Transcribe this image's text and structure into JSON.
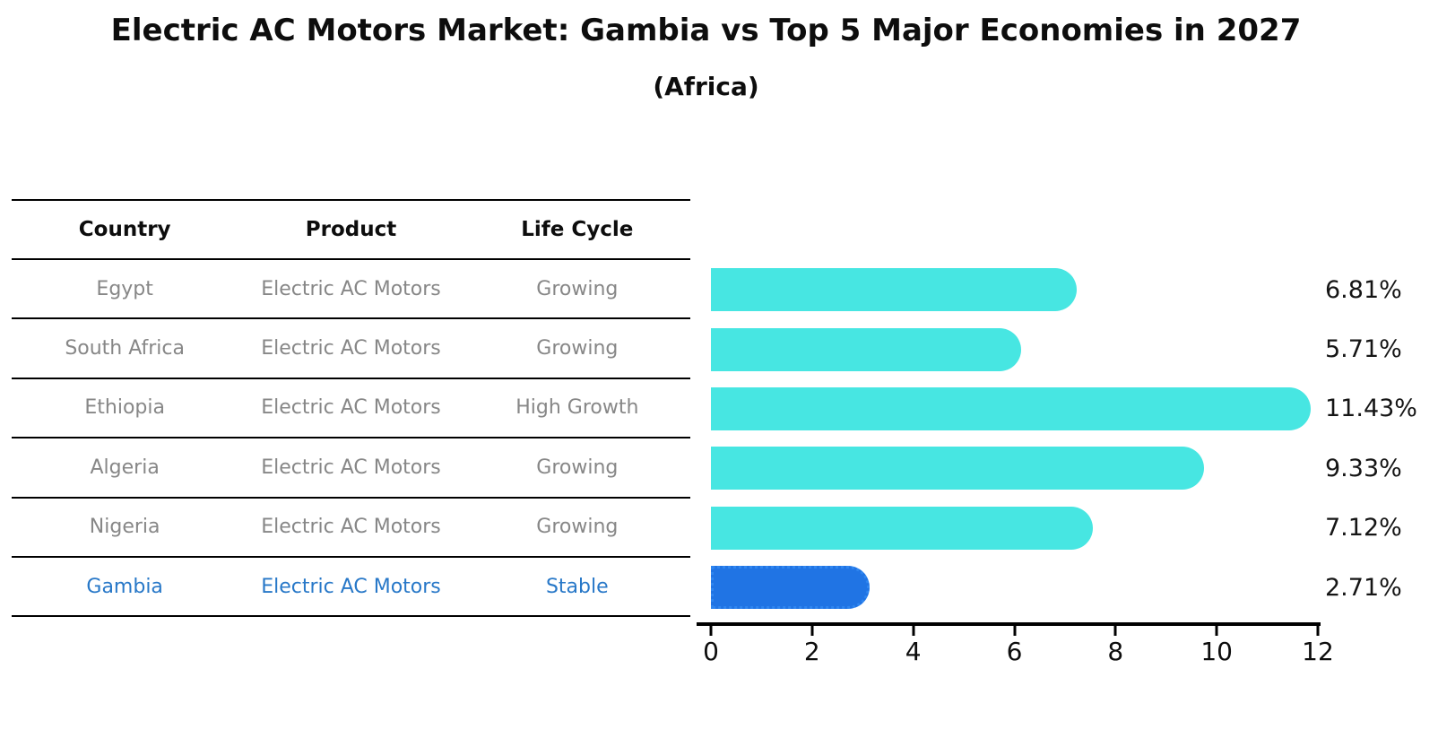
{
  "header": {
    "title": "Electric AC Motors Market: Gambia vs Top 5 Major Economies in 2027",
    "subtitle": "(Africa)"
  },
  "table": {
    "columns": [
      "Country",
      "Product",
      "Life Cycle"
    ],
    "rows": [
      {
        "country": "Egypt",
        "product": "Electric AC Motors",
        "life_cycle": "Growing",
        "highlight": false
      },
      {
        "country": "South Africa",
        "product": "Electric AC Motors",
        "life_cycle": "Growing",
        "highlight": false
      },
      {
        "country": "Ethiopia",
        "product": "Electric AC Motors",
        "life_cycle": "High Growth",
        "highlight": false
      },
      {
        "country": "Algeria",
        "product": "Electric AC Motors",
        "life_cycle": "Growing",
        "highlight": false
      },
      {
        "country": "Nigeria",
        "product": "Electric AC Motors",
        "life_cycle": "Growing",
        "highlight": false
      },
      {
        "country": "Gambia",
        "product": "Electric AC Motors",
        "life_cycle": "Stable",
        "highlight": true
      }
    ]
  },
  "chart_data": {
    "type": "bar",
    "orientation": "horizontal",
    "title": "Electric AC Motors Market: Gambia vs Top 5 Major Economies in 2027 (Africa)",
    "categories": [
      "Egypt",
      "South Africa",
      "Ethiopia",
      "Algeria",
      "Nigeria",
      "Gambia"
    ],
    "values": [
      6.81,
      5.71,
      11.43,
      9.33,
      7.12,
      2.71
    ],
    "value_labels": [
      "6.81%",
      "5.71%",
      "11.43%",
      "9.33%",
      "7.12%",
      "2.71%"
    ],
    "xlabel": "",
    "ylabel": "",
    "xlim": [
      0,
      12
    ],
    "x_ticks": [
      0,
      2,
      4,
      6,
      8,
      10,
      12
    ],
    "grid": false,
    "legend": false,
    "highlight_index": 5
  },
  "colors": {
    "bar_color": "#47e6e2",
    "highlight_color": "#2074e4",
    "highlight_edge": "#2f86f0",
    "highlight_text": "#2878c8",
    "row_text": "#878787",
    "line_color": "#000000"
  }
}
